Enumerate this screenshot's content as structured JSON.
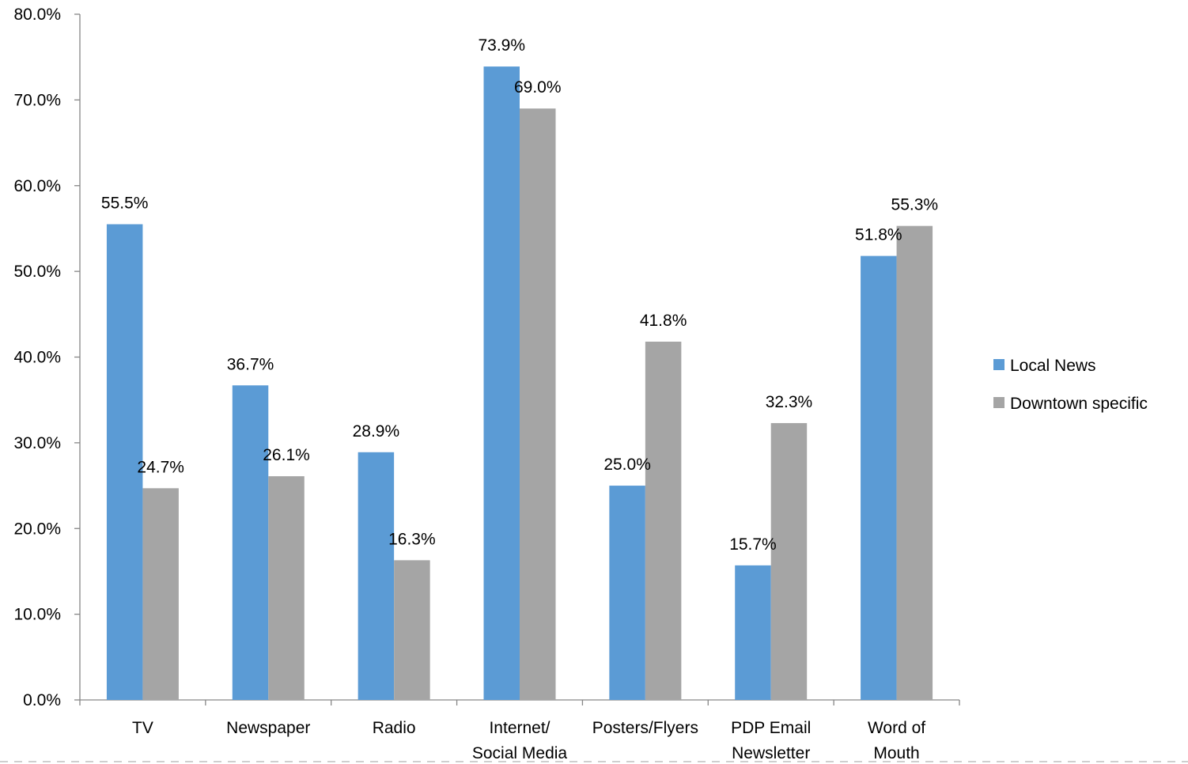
{
  "chart_data": {
    "type": "bar",
    "categories": [
      [
        "TV"
      ],
      [
        "Newspaper"
      ],
      [
        "Radio"
      ],
      [
        "Internet/",
        "Social Media"
      ],
      [
        "Posters/Flyers"
      ],
      [
        "PDP Email",
        "Newsletter"
      ],
      [
        "Word of",
        "Mouth"
      ]
    ],
    "series": [
      {
        "name": "Local News",
        "color": "#5b9bd5",
        "values": [
          55.5,
          36.7,
          28.9,
          73.9,
          25.0,
          15.7,
          51.8
        ],
        "labels": [
          "55.5%",
          "36.7%",
          "28.9%",
          "73.9%",
          "25.0%",
          "15.7%",
          "51.8%"
        ]
      },
      {
        "name": "Downtown specific",
        "color": "#a5a5a5",
        "values": [
          24.7,
          26.1,
          16.3,
          69.0,
          41.8,
          32.3,
          55.3
        ],
        "labels": [
          "24.7%",
          "26.1%",
          "16.3%",
          "69.0%",
          "41.8%",
          "32.3%",
          "55.3%"
        ]
      }
    ],
    "ylim": [
      0,
      80
    ],
    "yticks": [
      "0.0%",
      "10.0%",
      "20.0%",
      "30.0%",
      "40.0%",
      "50.0%",
      "60.0%",
      "70.0%",
      "80.0%"
    ],
    "title": "",
    "xlabel": "",
    "ylabel": "",
    "grid": false,
    "legend_position": "right"
  }
}
